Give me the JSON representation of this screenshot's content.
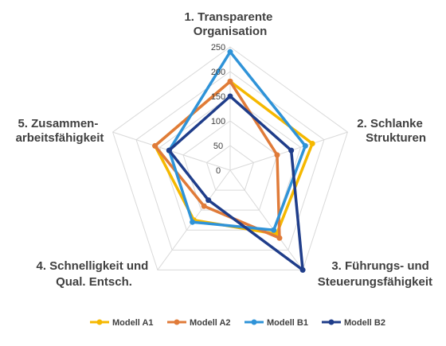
{
  "chart_data": {
    "type": "radar",
    "axes": [
      [
        "1. Transparente",
        "Organisation"
      ],
      [
        "2. Schlanke",
        "Strukturen"
      ],
      [
        "3. Führungs- und",
        "Steuerungsfähigkeit"
      ],
      [
        "4. Schnelligkeit und",
        "Qual. Entsch."
      ],
      [
        "5. Zusammen-",
        "arbeitsfähigkeit"
      ]
    ],
    "ticks": [
      "0",
      "50",
      "100",
      "150",
      "200",
      "250"
    ],
    "rlim": [
      0,
      250
    ],
    "grid": true,
    "legend_position": "bottom",
    "series": [
      {
        "name": "Modell A1",
        "color": "#f5b800",
        "values": [
          180,
          175,
          160,
          125,
          160
        ]
      },
      {
        "name": "Modell A2",
        "color": "#e07b39",
        "values": [
          180,
          100,
          170,
          90,
          160
        ]
      },
      {
        "name": "Modell B1",
        "color": "#2f93d8",
        "values": [
          240,
          160,
          150,
          130,
          130
        ]
      },
      {
        "name": "Modell B2",
        "color": "#1f3d8a",
        "values": [
          150,
          130,
          250,
          75,
          130
        ]
      }
    ]
  }
}
